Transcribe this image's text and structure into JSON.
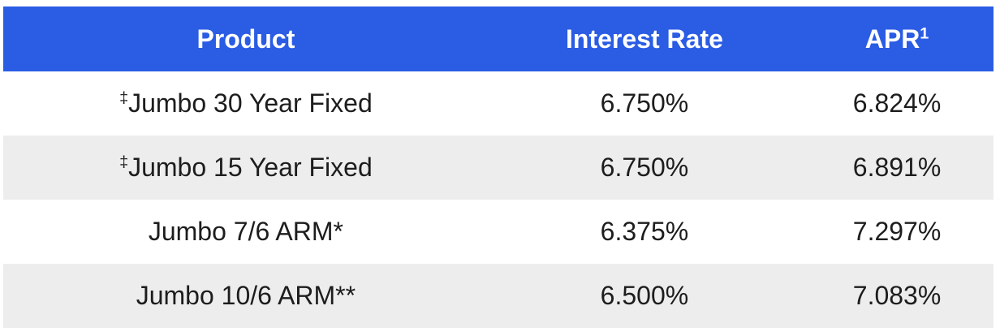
{
  "colors": {
    "header_bg": "#2A5CE4",
    "header_text": "#FFFFFF",
    "row_bg": "#FFFFFF",
    "row_alt_bg": "#EDEDED",
    "body_text": "#1D1D1D"
  },
  "table": {
    "columns": [
      {
        "label": "Product",
        "superscript": ""
      },
      {
        "label": "Interest Rate",
        "superscript": ""
      },
      {
        "label": "APR",
        "superscript": "1"
      }
    ],
    "rows": [
      {
        "product_prefix": "‡",
        "product": "Jumbo 30 Year Fixed",
        "interest_rate": "6.750%",
        "apr": "6.824%"
      },
      {
        "product_prefix": "‡",
        "product": "Jumbo 15 Year Fixed",
        "interest_rate": "6.750%",
        "apr": "6.891%"
      },
      {
        "product_prefix": "",
        "product": "Jumbo 7/6 ARM*",
        "interest_rate": "6.375%",
        "apr": "7.297%"
      },
      {
        "product_prefix": "",
        "product": "Jumbo 10/6 ARM**",
        "interest_rate": "6.500%",
        "apr": "7.083%"
      }
    ]
  }
}
